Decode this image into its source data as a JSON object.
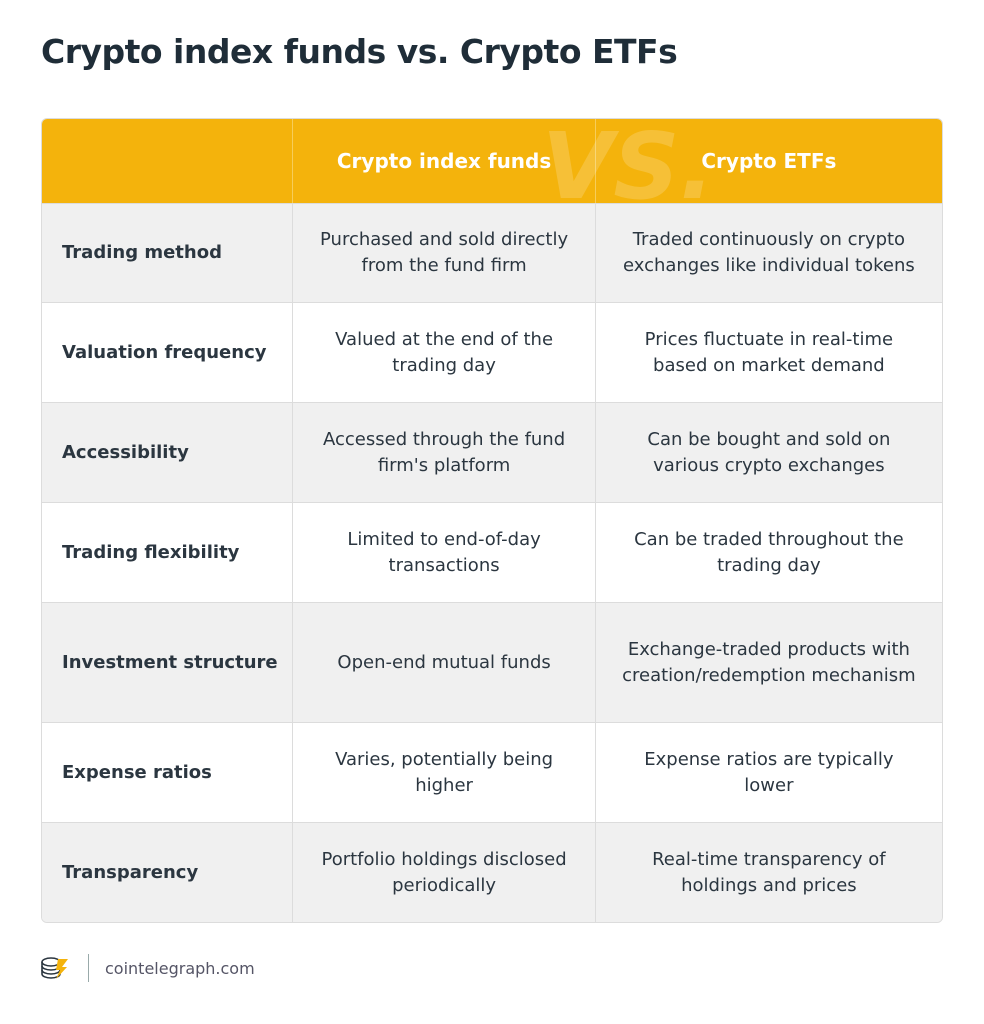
{
  "header": {
    "title": "Crypto index funds vs. Crypto ETFs"
  },
  "table": {
    "columns": [
      "Crypto index funds",
      "Crypto ETFs"
    ],
    "watermark": "VS.",
    "rows": [
      [
        "Trading method",
        "Purchased and sold directly from the fund firm",
        "Traded continuously on crypto exchanges like individual tokens"
      ],
      [
        "Valuation frequency",
        "Valued at the end of the trading day",
        "Prices fluctuate in real-time based on market demand"
      ],
      [
        "Accessibility",
        "Accessed through the fund firm's platform",
        "Can be bought and sold on various crypto exchanges"
      ],
      [
        "Trading flexibility",
        "Limited to end-of-day transactions",
        "Can be traded throughout the trading day"
      ],
      [
        "Investment structure",
        "Open-end mutual funds",
        "Exchange-traded products with creation/redemption mechanism"
      ],
      [
        "Expense ratios",
        "Varies, potentially being higher",
        "Expense ratios are typically lower"
      ],
      [
        "Transparency",
        "Portfolio holdings disclosed periodically",
        "Real-time transparency of holdings and prices"
      ]
    ]
  },
  "footer": {
    "source": "cointelegraph.com"
  }
}
